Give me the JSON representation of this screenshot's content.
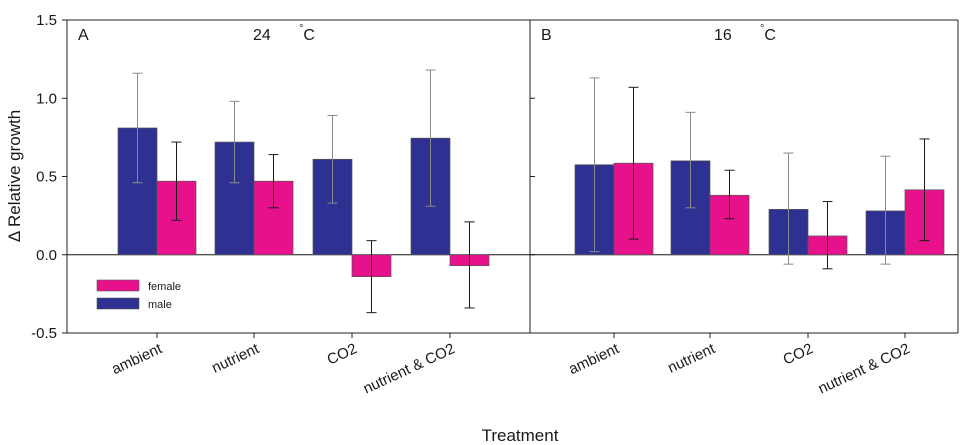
{
  "chart_data": {
    "type": "bar",
    "ylabel": "Δ Relative growth",
    "xlabel": "Treatment",
    "ylim": [
      -0.5,
      1.5
    ],
    "yticks": [
      "-0.5",
      "0.0",
      "0.5",
      "1.0",
      "1.5"
    ],
    "legend": {
      "placement": "lower-left of panel A",
      "entries": [
        {
          "name": "female",
          "color": "#e8118c"
        },
        {
          "name": "male",
          "color": "#2e3192"
        }
      ]
    },
    "panels": [
      {
        "letter": "A",
        "temperature": "24",
        "unit": "°C",
        "categories": [
          "ambient",
          "nutrient",
          "CO2",
          "nutrient & CO2"
        ],
        "series": [
          {
            "name": "male",
            "color": "#2e3192",
            "values": [
              0.81,
              0.72,
              0.61,
              0.745
            ],
            "error_low": [
              0.46,
              0.46,
              0.33,
              0.31
            ],
            "error_high": [
              1.16,
              0.98,
              0.89,
              1.18
            ]
          },
          {
            "name": "female",
            "color": "#e8118c",
            "values": [
              0.47,
              0.47,
              -0.14,
              -0.07
            ],
            "error_low": [
              0.22,
              0.3,
              -0.37,
              -0.34
            ],
            "error_high": [
              0.72,
              0.64,
              0.09,
              0.21
            ]
          }
        ]
      },
      {
        "letter": "B",
        "temperature": "16",
        "unit": "°C",
        "categories": [
          "ambient",
          "nutrient",
          "CO2",
          "nutrient & CO2"
        ],
        "series": [
          {
            "name": "male",
            "color": "#2e3192",
            "values": [
              0.575,
              0.6,
              0.29,
              0.28
            ],
            "error_low": [
              0.02,
              0.3,
              -0.06,
              -0.06
            ],
            "error_high": [
              1.13,
              0.91,
              0.65,
              0.63
            ]
          },
          {
            "name": "female",
            "color": "#e8118c",
            "values": [
              0.585,
              0.38,
              0.12,
              0.415
            ],
            "error_low": [
              0.1,
              0.23,
              -0.09,
              0.09
            ],
            "error_high": [
              1.07,
              0.54,
              0.34,
              0.74
            ]
          }
        ]
      }
    ]
  }
}
